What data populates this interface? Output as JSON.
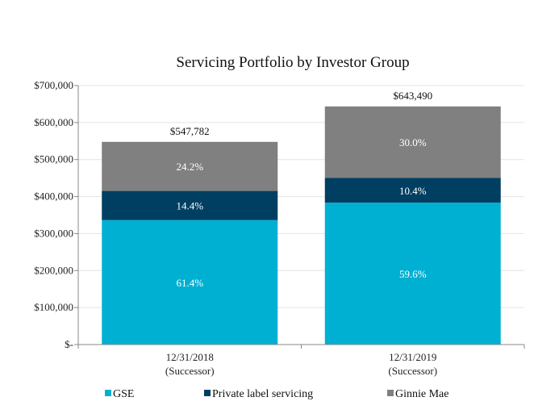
{
  "chart_data": {
    "type": "bar",
    "stacked": true,
    "title": "Servicing Portfolio by Investor Group",
    "xlabel": "",
    "ylabel": "",
    "ylim": [
      0,
      700000
    ],
    "yticks": [
      0,
      100000,
      200000,
      300000,
      400000,
      500000,
      600000,
      700000
    ],
    "ytick_labels": [
      "$-",
      "$100,000",
      "$200,000",
      "$300,000",
      "$400,000",
      "$500,000",
      "$600,000",
      "$700,000"
    ],
    "grid": true,
    "legend_position": "bottom",
    "categories": [
      "12/31/2018",
      "12/31/2019"
    ],
    "category_sublabels": [
      "(Successor)",
      "(Successor)"
    ],
    "totals": [
      547782,
      643490
    ],
    "total_labels": [
      "$547,782",
      "$643,490"
    ],
    "series": [
      {
        "name": "GSE",
        "color": "#00B0D2",
        "values": [
          336338,
          383520
        ],
        "labels": [
          "61.4%",
          "59.6%"
        ]
      },
      {
        "name": "Private label servicing",
        "color": "#003F62",
        "values": [
          78881,
          66923
        ],
        "labels": [
          "14.4%",
          "10.4%"
        ]
      },
      {
        "name": "Ginnie Mae",
        "color": "#808080",
        "values": [
          132563,
          193047
        ],
        "labels": [
          "24.2%",
          "30.0%"
        ]
      }
    ]
  }
}
